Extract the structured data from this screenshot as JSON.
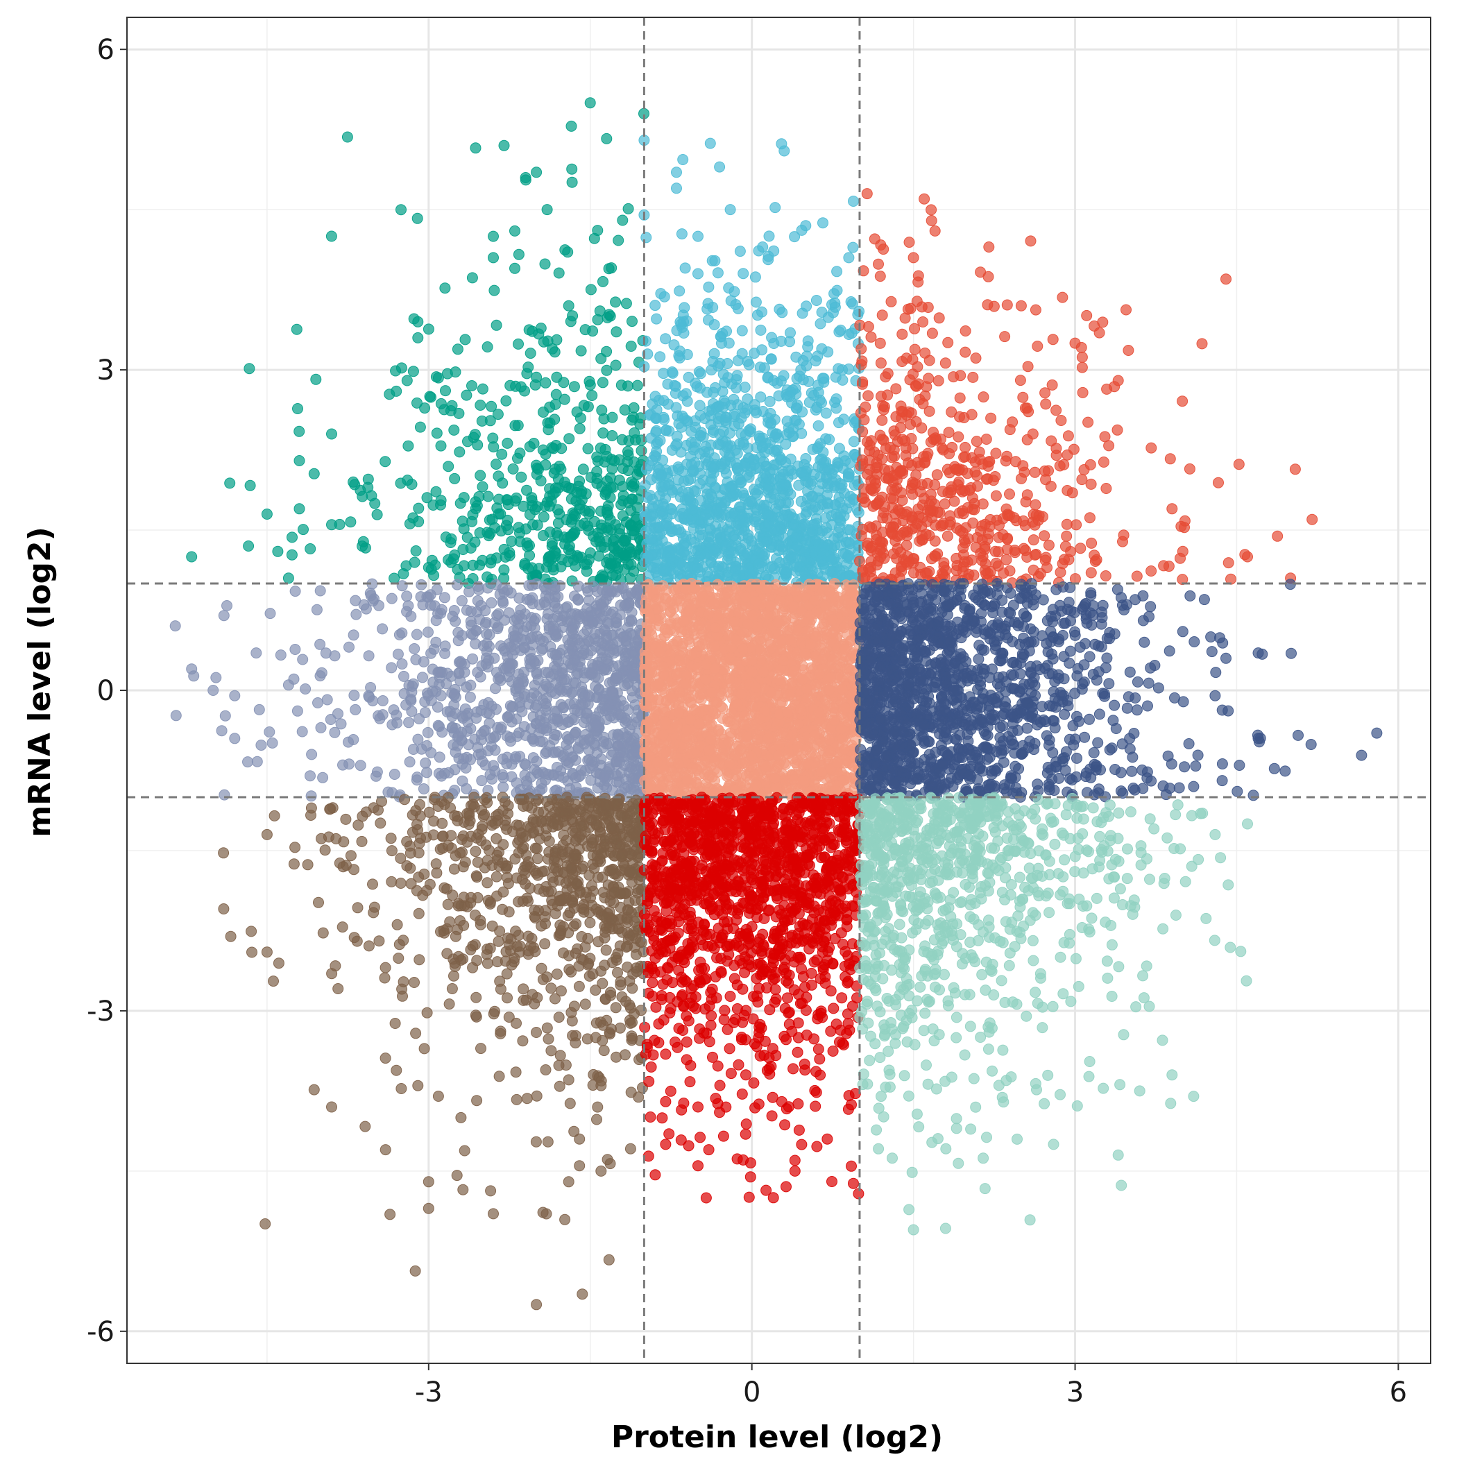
{
  "chart_data": {
    "type": "scatter",
    "title": "",
    "xlabel": "Protein level (log2)",
    "ylabel": "mRNA level (log2)",
    "xlim": [
      -5.8,
      6.3
    ],
    "ylim": [
      -6.3,
      6.3
    ],
    "x_ticks": [
      -3,
      0,
      3,
      6
    ],
    "y_ticks": [
      -6,
      -3,
      0,
      3,
      6
    ],
    "x_tick_labels": [
      "-3",
      "0",
      "3",
      "6"
    ],
    "y_tick_labels": [
      "-6",
      "-3",
      "0",
      "3",
      "6"
    ],
    "grid": true,
    "legend": "none",
    "thresholds": {
      "x": [
        -1,
        1
      ],
      "y": [
        -1,
        1
      ]
    },
    "point_opacity": 0.7,
    "groups": [
      {
        "color": "#009E86",
        "x_range": [
          -5.5,
          -1
        ],
        "y_range": [
          1,
          6
        ],
        "approx_count": 560,
        "points": [
          [
            -1.5,
            5.5
          ],
          [
            -2.3,
            5.1
          ],
          [
            -2.0,
            4.85
          ],
          [
            -2.1,
            4.8
          ],
          [
            -1.9,
            4.5
          ],
          [
            -2.4,
            4.25
          ],
          [
            -2.2,
            4.3
          ],
          [
            -1.2,
            4.4
          ],
          [
            -2.4,
            4.05
          ],
          [
            -2.2,
            3.95
          ],
          [
            -1.7,
            3.6
          ],
          [
            -3.1,
            3.45
          ],
          [
            -3.1,
            3.3
          ],
          [
            -3.2,
            2.9
          ],
          [
            -3.3,
            2.8
          ],
          [
            -3.9,
            2.4
          ],
          [
            -4.2,
            2.15
          ],
          [
            -4.5,
            1.65
          ],
          [
            -4.2,
            1.7
          ],
          [
            -5.2,
            1.25
          ],
          [
            -4.4,
            1.3
          ],
          [
            -4.3,
            1.05
          ],
          [
            -3.9,
            1.55
          ],
          [
            -3.5,
            1.75
          ],
          [
            -3.7,
            1.95
          ],
          [
            -3.0,
            1.15
          ]
        ]
      },
      {
        "color": "#4DBBD5",
        "x_range": [
          -1,
          1
        ],
        "y_range": [
          1,
          5.2
        ],
        "approx_count": 1300,
        "points": [
          [
            -1.0,
            5.15
          ],
          [
            0.3,
            5.05
          ],
          [
            -0.7,
            4.85
          ],
          [
            -0.3,
            4.9
          ],
          [
            -0.7,
            4.7
          ],
          [
            -1.0,
            4.45
          ],
          [
            -0.2,
            4.5
          ],
          [
            0.5,
            4.35
          ],
          [
            -0.5,
            4.25
          ],
          [
            0.1,
            4.15
          ],
          [
            0.9,
            4.05
          ],
          [
            -0.5,
            3.9
          ],
          [
            0.6,
            3.65
          ]
        ]
      },
      {
        "color": "#E64B35",
        "x_range": [
          1,
          5.3
        ],
        "y_range": [
          1,
          4.7
        ],
        "approx_count": 610,
        "points": [
          [
            1.6,
            4.6
          ],
          [
            1.7,
            4.3
          ],
          [
            2.2,
            4.15
          ],
          [
            1.5,
            4.05
          ],
          [
            4.4,
            3.85
          ],
          [
            2.5,
            3.6
          ],
          [
            3.0,
            3.25
          ],
          [
            3.4,
            2.9
          ],
          [
            5.2,
            1.6
          ],
          [
            4.6,
            1.25
          ],
          [
            5.0,
            1.05
          ],
          [
            3.9,
            1.7
          ],
          [
            4.0,
            1.3
          ]
        ]
      },
      {
        "color": "#8491B4",
        "x_range": [
          -5.5,
          -1
        ],
        "y_range": [
          -1,
          1
        ],
        "approx_count": 1100,
        "points": [
          [
            -5.2,
            0.2
          ],
          [
            -5.0,
            0.0
          ],
          [
            -4.8,
            -0.05
          ],
          [
            -4.8,
            -0.45
          ],
          [
            -4.6,
            0.35
          ],
          [
            -4.9,
            0.7
          ],
          [
            -4.3,
            0.05
          ],
          [
            -4.1,
            -0.8
          ],
          [
            -4.0,
            -0.35
          ],
          [
            -3.6,
            0.8
          ]
        ]
      },
      {
        "color": "#F39B7F",
        "x_range": [
          -1,
          1
        ],
        "y_range": [
          -1,
          1
        ],
        "approx_count": 2500,
        "points": []
      },
      {
        "color": "#3C5488",
        "x_range": [
          1,
          5.9
        ],
        "y_range": [
          -1,
          1
        ],
        "approx_count": 1500,
        "points": [
          [
            5.8,
            -0.4
          ],
          [
            4.7,
            0.35
          ],
          [
            4.7,
            -0.45
          ],
          [
            4.3,
            -0.05
          ],
          [
            4.4,
            0.3
          ],
          [
            4.1,
            -0.9
          ],
          [
            4.0,
            0.55
          ],
          [
            4.2,
            0.85
          ]
        ]
      },
      {
        "color": "#7E6148",
        "x_range": [
          -5.5,
          -1
        ],
        "y_range": [
          -5.8,
          -1
        ],
        "approx_count": 900,
        "points": [
          [
            -2.0,
            -5.75
          ],
          [
            -2.4,
            -4.9
          ],
          [
            -3.0,
            -4.85
          ],
          [
            -3.0,
            -4.6
          ],
          [
            -1.7,
            -4.6
          ],
          [
            -1.4,
            -4.5
          ],
          [
            -1.6,
            -4.45
          ],
          [
            -3.4,
            -4.3
          ],
          [
            -1.6,
            -4.2
          ],
          [
            -4.5,
            -2.45
          ],
          [
            -4.5,
            -1.35
          ],
          [
            -3.9,
            -3.9
          ],
          [
            -3.1,
            -3.7
          ],
          [
            -2.7,
            -4.0
          ],
          [
            -1.4,
            -3.7
          ]
        ]
      },
      {
        "color": "#DC0000",
        "x_range": [
          -1,
          1
        ],
        "y_range": [
          -4.8,
          -1
        ],
        "approx_count": 1400,
        "points": [
          [
            0.2,
            -4.75
          ],
          [
            0.4,
            -4.5
          ],
          [
            0.4,
            -4.4
          ],
          [
            -0.5,
            -4.45
          ],
          [
            -0.8,
            -4.25
          ],
          [
            -0.4,
            -4.3
          ],
          [
            0.7,
            -4.2
          ],
          [
            -0.8,
            -3.85
          ],
          [
            -0.5,
            -3.9
          ],
          [
            -0.3,
            -3.95
          ]
        ]
      },
      {
        "color": "#91D1C2",
        "x_range": [
          1,
          4.6
        ],
        "y_range": [
          -5.1,
          -1
        ],
        "approx_count": 900,
        "points": [
          [
            1.5,
            -5.05
          ],
          [
            3.4,
            -4.35
          ],
          [
            2.8,
            -4.25
          ],
          [
            1.9,
            -4.1
          ],
          [
            4.1,
            -3.8
          ],
          [
            3.6,
            -3.75
          ],
          [
            3.9,
            -3.6
          ],
          [
            1.2,
            -3.8
          ],
          [
            4.3,
            -1.35
          ],
          [
            4.6,
            -1.25
          ]
        ]
      }
    ]
  }
}
